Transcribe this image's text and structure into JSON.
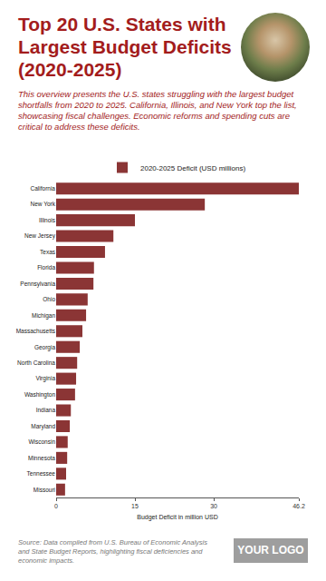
{
  "chart_data": {
    "type": "bar",
    "orientation": "horizontal",
    "title": "Top 20 U.S. States with Largest Budget Deficits (2020-2025)",
    "subtitle": "This overview presents the U.S. states struggling with the largest budget shortfalls from 2020 to 2025. California, Illinois, and New York top the list, showcasing fiscal challenges. Economic reforms and spending cuts are critical to address these deficits.",
    "x_label": "Budget Deficit in million USD",
    "source": "Source: Data compiled from U.S. Bureau of Economic Analysis and State Budget Reports, highlighting fiscal deficiencies and economic impacts.",
    "logo": "YOUR LOGO",
    "categories": [
      "California",
      "New York",
      "Illinois",
      "New Jersey",
      "Texas",
      "Florida",
      "Pennsylvania",
      "Ohio",
      "Michigan",
      "Massachusetts",
      "Georgia",
      "North Carolina",
      "Virginia",
      "Washington",
      "Indiana",
      "Maryland",
      "Wisconsin",
      "Minnesota",
      "Tennessee",
      "Missouri"
    ],
    "series": [
      {
        "name": "2020-2025 Deficit (USD millions)",
        "color": "#8b3535",
        "values": [
          46.2,
          28.3,
          15.0,
          10.9,
          9.3,
          7.2,
          7.1,
          6.0,
          5.7,
          5.0,
          4.5,
          4.0,
          3.8,
          3.6,
          2.8,
          2.6,
          2.2,
          2.1,
          1.9,
          1.7
        ]
      }
    ],
    "xlim": [
      0,
      46.2
    ],
    "xticks": [
      0,
      15,
      30,
      46.2
    ],
    "grid": false,
    "legend": "top"
  }
}
